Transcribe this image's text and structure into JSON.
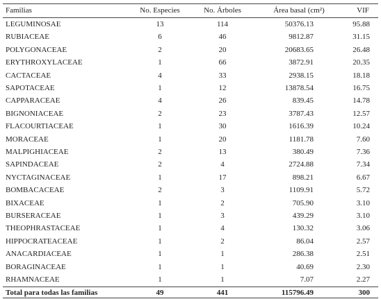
{
  "table": {
    "header": [
      "Familias",
      "No. Especies",
      "No. Árboles",
      "Área basal (cm²)",
      "VIF"
    ],
    "rows": [
      [
        "LEGUMINOSAE",
        "13",
        "114",
        "50376.13",
        "95.88"
      ],
      [
        "RUBIACEAE",
        "6",
        "46",
        "9812.87",
        "31.15"
      ],
      [
        "POLYGONACEAE",
        "2",
        "20",
        "20683.65",
        "26.48"
      ],
      [
        "ERYTHROXYLACEAE",
        "1",
        "66",
        "3872.91",
        "20.35"
      ],
      [
        "CACTACEAE",
        "4",
        "33",
        "2938.15",
        "18.18"
      ],
      [
        "SAPOTACEAE",
        "1",
        "12",
        "13878.54",
        "16.75"
      ],
      [
        "CAPPARACEAE",
        "4",
        "26",
        "839.45",
        "14.78"
      ],
      [
        "BIGNONIACEAE",
        "2",
        "23",
        "3787.43",
        "12.57"
      ],
      [
        "FLACOURTIACEAE",
        "1",
        "30",
        "1616.39",
        "10.24"
      ],
      [
        "MORACEAE",
        "1",
        "20",
        "1181.78",
        "7.60"
      ],
      [
        "MALPIGHIACEAE",
        "2",
        "13",
        "380.49",
        "7.36"
      ],
      [
        "SAPINDACEAE",
        "2",
        "4",
        "2724.88",
        "7.34"
      ],
      [
        "NYCTAGINACEAE",
        "1",
        "17",
        "898.21",
        "6.67"
      ],
      [
        "BOMBACACEAE",
        "2",
        "3",
        "1109.91",
        "5.72"
      ],
      [
        "BIXACEAE",
        "1",
        "2",
        "705.90",
        "3.10"
      ],
      [
        "BURSERACEAE",
        "1",
        "3",
        "439.29",
        "3.10"
      ],
      [
        "THEOPHRASTACEAE",
        "1",
        "4",
        "130.32",
        "3.06"
      ],
      [
        "HIPPOCRATEACEAE",
        "1",
        "2",
        "86.04",
        "2.57"
      ],
      [
        "ANACARDIACEAE",
        "1",
        "1",
        "286.38",
        "2.51"
      ],
      [
        "BORAGINACEAE",
        "1",
        "1",
        "40.69",
        "2.30"
      ],
      [
        "RHAMNACEAE",
        "1",
        "1",
        "7.07",
        "2.27"
      ]
    ],
    "total": [
      "Total para todas las familias",
      "49",
      "441",
      "115796.49",
      "300"
    ]
  }
}
